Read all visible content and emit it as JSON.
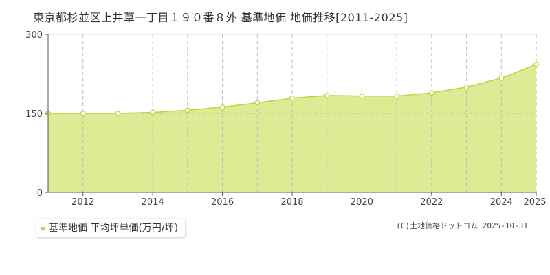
{
  "chart_data": {
    "type": "area",
    "title": "東京都杉並区上井草一丁目１９０番８外 基準地価 地価推移[2011-2025]",
    "x": [
      2011,
      2012,
      2013,
      2014,
      2015,
      2016,
      2017,
      2018,
      2019,
      2020,
      2021,
      2022,
      2023,
      2024,
      2025
    ],
    "series": [
      {
        "name": "基準地価 平均坪単価(万円/坪)",
        "values": [
          150,
          150,
          150,
          152,
          156,
          162,
          170,
          179,
          184,
          183,
          183,
          189,
          200,
          217,
          243
        ]
      }
    ],
    "xticks": [
      "2012",
      "2014",
      "2016",
      "2018",
      "2020",
      "2022",
      "2024",
      "2025"
    ],
    "yticks": [
      "0",
      "150",
      "300"
    ],
    "ylim": [
      0,
      300
    ],
    "xlim": [
      2011,
      2025
    ],
    "grid": true,
    "legend": "bottom-left",
    "colors": {
      "fill": "#dceb94",
      "line": "#b6d83a"
    }
  },
  "copyright": "(C)土地価格ドットコム 2025-10-31"
}
